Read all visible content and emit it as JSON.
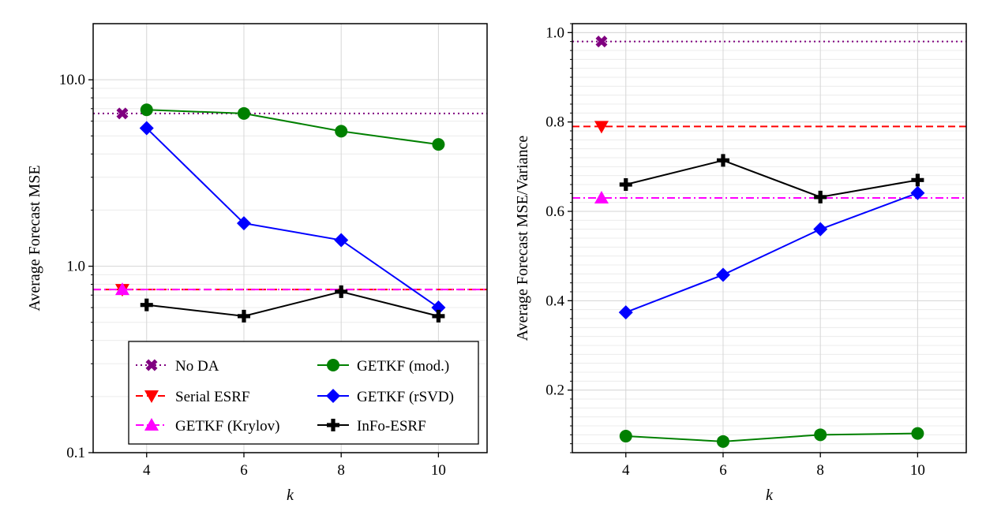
{
  "chart_data": [
    {
      "type": "line",
      "name": "left",
      "xlabel": "k",
      "ylabel": "Average Forecast MSE",
      "yscale": "log",
      "xlim": [
        2.9,
        11.0
      ],
      "ylim": [
        0.1,
        20
      ],
      "x_ticks": [
        4,
        6,
        8,
        10
      ],
      "x_tick_labels": [
        "4",
        "6",
        "8",
        "10"
      ],
      "y_ticks": [
        0.1,
        1.0,
        10.0
      ],
      "y_tick_labels": [
        "0.1",
        "1.0",
        "10.0"
      ],
      "grid": true,
      "legend_position": "lower-center",
      "x": [
        4,
        6,
        8,
        10
      ],
      "series": [
        {
          "name": "No DA",
          "kind": "hline",
          "value": 6.6,
          "marker_x": 3.5,
          "color": "#800080",
          "linestyle": "dotted",
          "marker": "x"
        },
        {
          "name": "Serial ESRF",
          "kind": "hline",
          "value": 0.75,
          "marker_x": 3.5,
          "color": "#ff0000",
          "linestyle": "dashed",
          "marker": "triangle-down"
        },
        {
          "name": "GETKF (Krylov)",
          "kind": "hline",
          "value": 0.75,
          "marker_x": 3.5,
          "color": "#ff00ff",
          "linestyle": "dashdot",
          "marker": "triangle-up"
        },
        {
          "name": "GETKF (mod.)",
          "kind": "line",
          "values": [
            6.9,
            6.6,
            5.3,
            4.5
          ],
          "color": "#008000",
          "marker": "circle"
        },
        {
          "name": "GETKF (rSVD)",
          "kind": "line",
          "values": [
            5.5,
            1.7,
            1.38,
            0.6
          ],
          "color": "#0000ff",
          "marker": "diamond"
        },
        {
          "name": "InFo-ESRF",
          "kind": "line",
          "values": [
            0.62,
            0.54,
            0.73,
            0.54
          ],
          "color": "#000000",
          "marker": "plus"
        }
      ]
    },
    {
      "type": "line",
      "name": "right",
      "xlabel": "k",
      "ylabel": "Average Forecast MSE/Variance",
      "yscale": "linear",
      "xlim": [
        2.9,
        11.0
      ],
      "ylim": [
        0.06,
        1.02
      ],
      "x_ticks": [
        4,
        6,
        8,
        10
      ],
      "x_tick_labels": [
        "4",
        "6",
        "8",
        "10"
      ],
      "y_ticks": [
        0.2,
        0.4,
        0.6,
        0.8,
        1.0
      ],
      "y_tick_labels": [
        "0.2",
        "0.4",
        "0.6",
        "0.8",
        "1.0"
      ],
      "grid": true,
      "x": [
        4,
        6,
        8,
        10
      ],
      "series": [
        {
          "name": "No DA",
          "kind": "hline",
          "value": 0.98,
          "marker_x": 3.5,
          "color": "#800080",
          "linestyle": "dotted",
          "marker": "x"
        },
        {
          "name": "Serial ESRF",
          "kind": "hline",
          "value": 0.79,
          "marker_x": 3.5,
          "color": "#ff0000",
          "linestyle": "dashed",
          "marker": "triangle-down"
        },
        {
          "name": "GETKF (Krylov)",
          "kind": "hline",
          "value": 0.63,
          "marker_x": 3.5,
          "color": "#ff00ff",
          "linestyle": "dashdot",
          "marker": "triangle-up"
        },
        {
          "name": "GETKF (mod.)",
          "kind": "line",
          "values": [
            0.097,
            0.085,
            0.1,
            0.103
          ],
          "color": "#008000",
          "marker": "circle"
        },
        {
          "name": "GETKF (rSVD)",
          "kind": "line",
          "values": [
            0.374,
            0.458,
            0.56,
            0.641
          ],
          "color": "#0000ff",
          "marker": "diamond"
        },
        {
          "name": "InFo-ESRF",
          "kind": "line",
          "values": [
            0.66,
            0.714,
            0.632,
            0.67
          ],
          "color": "#000000",
          "marker": "plus"
        }
      ]
    }
  ],
  "legend": {
    "entries": [
      {
        "label": "No DA",
        "series": "No DA"
      },
      {
        "label": "GETKF (mod.)",
        "series": "GETKF (mod.)"
      },
      {
        "label": "Serial ESRF",
        "series": "Serial ESRF"
      },
      {
        "label": "GETKF (rSVD)",
        "series": "GETKF (rSVD)"
      },
      {
        "label": "GETKF (Krylov)",
        "series": "GETKF (Krylov)"
      },
      {
        "label": "InFo-ESRF",
        "series": "InFo-ESRF"
      }
    ]
  }
}
